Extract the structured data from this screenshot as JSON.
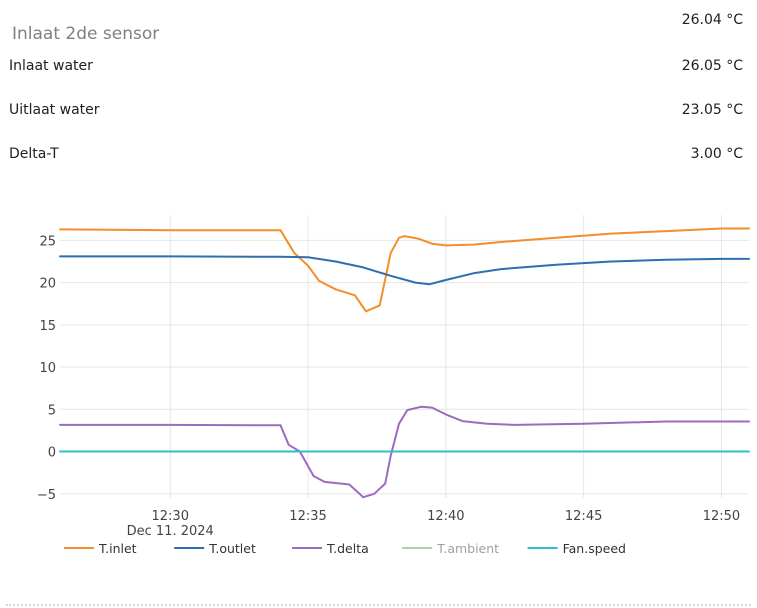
{
  "header": {
    "title": "Inlaat 2de sensor",
    "value": "26.04 °C"
  },
  "rows": [
    {
      "label": "Inlaat water",
      "value": "26.05 °C"
    },
    {
      "label": "Uitlaat water",
      "value": "23.05 °C"
    },
    {
      "label": "Delta-T",
      "value": "3.00 °C"
    }
  ],
  "chart_data": {
    "type": "line",
    "x_tick_labels": [
      "12:30",
      "12:35",
      "12:40",
      "12:45",
      "12:50"
    ],
    "x_date_label": "Dec 11. 2024",
    "y_tick_labels": [
      "25",
      "20",
      "15",
      "10",
      "5",
      "0",
      "−5"
    ],
    "xlim": [
      "12:26",
      "12:51"
    ],
    "ylim": [
      -5.5,
      28
    ],
    "grid": true,
    "legend_position": "bottom-left",
    "series": [
      {
        "name": "T.inlet",
        "color": "#f28e2b",
        "hidden": false,
        "points": [
          [
            "12:26",
            26.3
          ],
          [
            "12:30",
            26.2
          ],
          [
            "12:34",
            26.2
          ],
          [
            "12:34.5",
            23.5
          ],
          [
            "12:35",
            22.0
          ],
          [
            "12:35.4",
            20.2
          ],
          [
            "12:36",
            19.2
          ],
          [
            "12:36.7",
            18.5
          ],
          [
            "12:37.1",
            16.6
          ],
          [
            "12:37.6",
            17.3
          ],
          [
            "12:38",
            23.5
          ],
          [
            "12:38.3",
            25.3
          ],
          [
            "12:38.5",
            25.5
          ],
          [
            "12:39",
            25.2
          ],
          [
            "12:39.5",
            24.6
          ],
          [
            "12:40",
            24.4
          ],
          [
            "12:41",
            24.5
          ],
          [
            "12:42",
            24.8
          ],
          [
            "12:44",
            25.3
          ],
          [
            "12:46",
            25.8
          ],
          [
            "12:48",
            26.1
          ],
          [
            "12:50",
            26.4
          ],
          [
            "12:51",
            26.4
          ]
        ]
      },
      {
        "name": "T.outlet",
        "color": "#2e6fb0",
        "hidden": false,
        "points": [
          [
            "12:26",
            23.1
          ],
          [
            "12:30",
            23.1
          ],
          [
            "12:34",
            23.05
          ],
          [
            "12:35",
            23.0
          ],
          [
            "12:36",
            22.5
          ],
          [
            "12:37",
            21.8
          ],
          [
            "12:38",
            20.8
          ],
          [
            "12:38.9",
            20.0
          ],
          [
            "12:39.4",
            19.8
          ],
          [
            "12:40",
            20.3
          ],
          [
            "12:41",
            21.1
          ],
          [
            "12:42",
            21.6
          ],
          [
            "12:44",
            22.1
          ],
          [
            "12:46",
            22.5
          ],
          [
            "12:48",
            22.7
          ],
          [
            "12:50",
            22.8
          ],
          [
            "12:51",
            22.8
          ]
        ]
      },
      {
        "name": "T.delta",
        "color": "#9e6ac0",
        "hidden": false,
        "points": [
          [
            "12:26",
            3.15
          ],
          [
            "12:30",
            3.15
          ],
          [
            "12:34",
            3.1
          ],
          [
            "12:34.3",
            0.8
          ],
          [
            "12:34.7",
            0.0
          ],
          [
            "12:35.2",
            -2.9
          ],
          [
            "12:35.6",
            -3.6
          ],
          [
            "12:36.5",
            -3.9
          ],
          [
            "12:37",
            -5.4
          ],
          [
            "12:37.4",
            -5.0
          ],
          [
            "12:37.8",
            -3.8
          ],
          [
            "12:38",
            -0.5
          ],
          [
            "12:38.3",
            3.3
          ],
          [
            "12:38.6",
            4.9
          ],
          [
            "12:39.1",
            5.3
          ],
          [
            "12:39.5",
            5.2
          ],
          [
            "12:40",
            4.4
          ],
          [
            "12:40.6",
            3.6
          ],
          [
            "12:41.5",
            3.3
          ],
          [
            "12:42.5",
            3.15
          ],
          [
            "12:45",
            3.3
          ],
          [
            "12:48",
            3.55
          ],
          [
            "12:51",
            3.55
          ]
        ]
      },
      {
        "name": "T.ambient",
        "color": "#a6d79d",
        "hidden": true,
        "points": []
      },
      {
        "name": "Fan.speed",
        "color": "#2ebfcf",
        "hidden": false,
        "points": [
          [
            "12:26",
            0
          ],
          [
            "12:51",
            0
          ]
        ]
      }
    ]
  }
}
